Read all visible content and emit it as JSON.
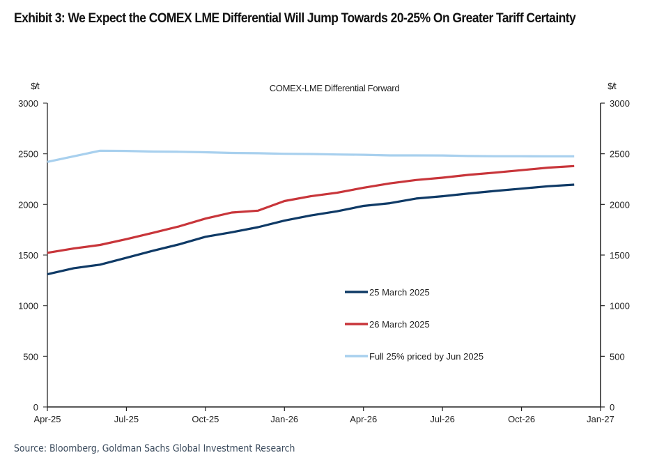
{
  "exhibit": {
    "title": "Exhibit 3: We Expect the COMEX LME Differential Will Jump Towards 20-25% On Greater Tariff Certainty",
    "source": "Source: Bloomberg, Goldman Sachs Global Investment Research"
  },
  "chart_data": {
    "type": "line",
    "title": "COMEX-LME  Differential Forward",
    "xlabel": "",
    "ylabel": "$/t",
    "ylabel_right": "$/t",
    "ylim": [
      0,
      3000
    ],
    "yticks": [
      0,
      500,
      1000,
      1500,
      2000,
      2500,
      3000
    ],
    "xlim": [
      "Apr-25",
      "Jan-27"
    ],
    "xtick_labels": [
      "Apr-25",
      "Jul-25",
      "Oct-25",
      "Jan-26",
      "Apr-26",
      "Jul-26",
      "Oct-26",
      "Jan-27"
    ],
    "grid": false,
    "legend_position": "center-bottom",
    "x": [
      "Apr-25",
      "May-25",
      "Jun-25",
      "Jul-25",
      "Aug-25",
      "Sep-25",
      "Oct-25",
      "Nov-25",
      "Dec-25",
      "Jan-26",
      "Feb-26",
      "Mar-26",
      "Apr-26",
      "May-26",
      "Jun-26",
      "Jul-26",
      "Aug-26",
      "Sep-26",
      "Oct-26",
      "Nov-26",
      "Dec-26"
    ],
    "series": [
      {
        "name": "25 March 2025",
        "color": "#0f3a66",
        "values": [
          1310,
          1370,
          1405,
          1473,
          1542,
          1605,
          1680,
          1725,
          1775,
          1840,
          1891,
          1932,
          1985,
          2012,
          2058,
          2081,
          2108,
          2133,
          2156,
          2179,
          2195
        ]
      },
      {
        "name": "26 March 2025",
        "color": "#c8353a",
        "values": [
          1522,
          1565,
          1600,
          1657,
          1719,
          1783,
          1860,
          1920,
          1938,
          2033,
          2081,
          2115,
          2165,
          2207,
          2241,
          2264,
          2292,
          2314,
          2338,
          2363,
          2379
        ]
      },
      {
        "name": "Full 25% priced by Jun 2025",
        "color": "#a8d0ee",
        "values": [
          2420,
          2475,
          2530,
          2528,
          2522,
          2520,
          2515,
          2508,
          2505,
          2500,
          2498,
          2493,
          2490,
          2484,
          2484,
          2483,
          2478,
          2476,
          2476,
          2475,
          2475
        ]
      }
    ]
  }
}
